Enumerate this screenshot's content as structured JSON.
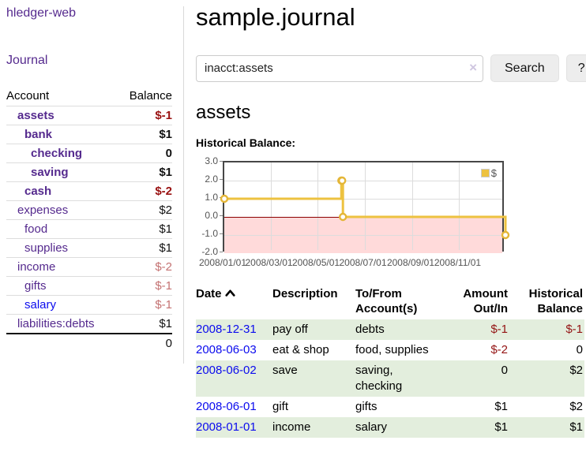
{
  "app": {
    "brand": "hledger-web",
    "nav_journal": "Journal"
  },
  "sidebar": {
    "header": {
      "account": "Account",
      "balance": "Balance"
    },
    "accounts": [
      {
        "name": "assets",
        "balance": "$-1",
        "depth": 1,
        "bold": true,
        "neg": "strong"
      },
      {
        "name": "bank",
        "balance": "$1",
        "depth": 2,
        "bold": true,
        "neg": "none"
      },
      {
        "name": "checking",
        "balance": "0",
        "depth": 3,
        "bold": true,
        "neg": "none"
      },
      {
        "name": "saving",
        "balance": "$1",
        "depth": 3,
        "bold": true,
        "neg": "none"
      },
      {
        "name": "cash",
        "balance": "$-2",
        "depth": 2,
        "bold": true,
        "neg": "strong"
      },
      {
        "name": "expenses",
        "balance": "$2",
        "depth": 1,
        "bold": false,
        "neg": "none"
      },
      {
        "name": "food",
        "balance": "$1",
        "depth": 2,
        "bold": false,
        "neg": "none"
      },
      {
        "name": "supplies",
        "balance": "$1",
        "depth": 2,
        "bold": false,
        "neg": "none"
      },
      {
        "name": "income",
        "balance": "$-2",
        "depth": 1,
        "bold": false,
        "neg": "soft"
      },
      {
        "name": "gifts",
        "balance": "$-1",
        "depth": 2,
        "bold": false,
        "neg": "soft"
      },
      {
        "name": "salary",
        "balance": "$-1",
        "depth": 2,
        "bold": false,
        "neg": "soft",
        "link_color": "blue"
      },
      {
        "name": "liabilities:debts",
        "balance": "$1",
        "depth": 1,
        "bold": false,
        "neg": "none"
      }
    ],
    "total": "0"
  },
  "header": {
    "title": "sample.journal"
  },
  "search": {
    "query": "inacct:assets",
    "clear_icon": "×",
    "button_label": "Search",
    "help_label": "?"
  },
  "register": {
    "heading": "assets",
    "chart_label": "Historical Balance:",
    "table": {
      "headers": {
        "date": "Date",
        "description": "Description",
        "accounts": "To/From Account(s)",
        "amount": "Amount Out/In",
        "balance": "Historical Balance"
      },
      "rows": [
        {
          "date": "2008-12-31",
          "description": "pay off",
          "accounts": "debts",
          "amount": "$-1",
          "balance": "$-1"
        },
        {
          "date": "2008-06-03",
          "description": "eat & shop",
          "accounts": "food, supplies",
          "amount": "$-2",
          "balance": "0"
        },
        {
          "date": "2008-06-02",
          "description": "save",
          "accounts": "saving, checking",
          "amount": "0",
          "balance": "$2"
        },
        {
          "date": "2008-06-01",
          "description": "gift",
          "accounts": "gifts",
          "amount": "$1",
          "balance": "$2"
        },
        {
          "date": "2008-01-01",
          "description": "income",
          "accounts": "salary",
          "amount": "$1",
          "balance": "$1"
        }
      ]
    }
  },
  "chart_data": {
    "type": "line",
    "step": true,
    "title": "Historical Balance:",
    "x": [
      "2008-01-01",
      "2008-06-01",
      "2008-06-02",
      "2008-06-03",
      "2008-12-31"
    ],
    "x_day_offsets": [
      0,
      152,
      153,
      154,
      365
    ],
    "x_range_days": 365,
    "series": [
      {
        "name": "$",
        "values": [
          1,
          2,
          2,
          0,
          -1
        ]
      }
    ],
    "ylim": [
      -2,
      3
    ],
    "yticks": [
      3,
      2,
      1,
      0,
      -1,
      -2
    ],
    "xticks": [
      {
        "label": "2008/01/01",
        "day": 0
      },
      {
        "label": "2008/03/01",
        "day": 60
      },
      {
        "label": "2008/05/01",
        "day": 121
      },
      {
        "label": "2008/07/01",
        "day": 182
      },
      {
        "label": "2008/09/01",
        "day": 244
      },
      {
        "label": "2008/11/01",
        "day": 305
      }
    ],
    "grid": true,
    "legend": {
      "label": "$",
      "position": "top-right"
    },
    "colors": {
      "line": "#edc240",
      "marker_stroke": "#e4b637",
      "negative_fill": "#ffdada",
      "zero_line": "#8b0000",
      "grid": "#dcdcdc",
      "border": "#474747"
    }
  },
  "colors": {
    "link_purple": "#552a8e",
    "link_blue": "#0b0bee",
    "negative_strong": "#991111",
    "negative_soft": "#c47272",
    "row_stripe_green": "#e3eedd"
  }
}
